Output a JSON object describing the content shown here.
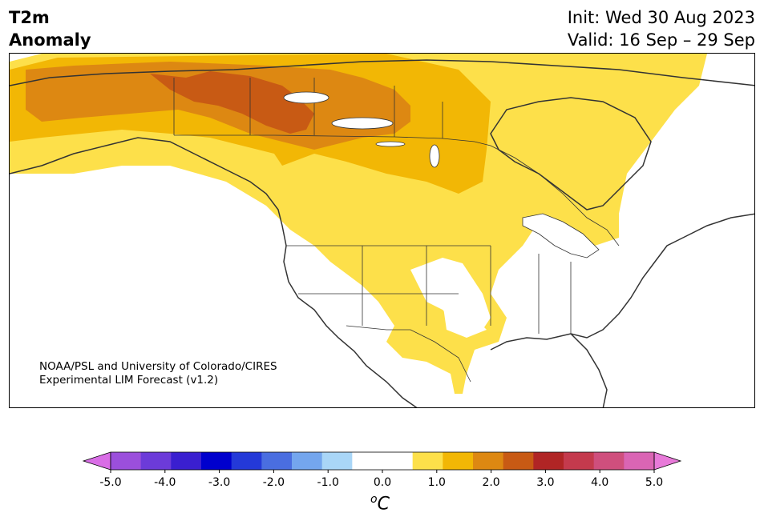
{
  "title": {
    "line1": "T2m",
    "line2": "Anomaly"
  },
  "info": {
    "init": "Init: Wed 30 Aug 2023",
    "valid": "Valid: 16 Sep – 29 Sep"
  },
  "credit": {
    "line1": "NOAA/PSL and University of Colorado/CIRES",
    "line2": "Experimental LIM Forecast (v1.2)"
  },
  "colorbar": {
    "unit_base": "C",
    "unit_sup": "o",
    "ticks": [
      "-5.0",
      "-4.0",
      "-3.0",
      "-2.0",
      "-1.0",
      "0.0",
      "1.0",
      "2.0",
      "3.0",
      "4.0",
      "5.0"
    ],
    "colors": [
      "#9b4fdc",
      "#6c3bd9",
      "#3a1fd0",
      "#0000cd",
      "#2439d8",
      "#4a6ee0",
      "#74a6ee",
      "#a9d6f7",
      "#ffffff",
      "#ffffff",
      "#fde04a",
      "#f2b705",
      "#dd8812",
      "#c85a14",
      "#b02525",
      "#c43a4d",
      "#cf4f7d",
      "#da65b4"
    ],
    "under_color": "#d96ee6",
    "over_color": "#e87ad9"
  },
  "anomaly_colors": {
    "light_yellow": "#fde04a",
    "yellow": "#f2b705",
    "orange": "#dd8812",
    "dark_orange": "#c85a14"
  }
}
